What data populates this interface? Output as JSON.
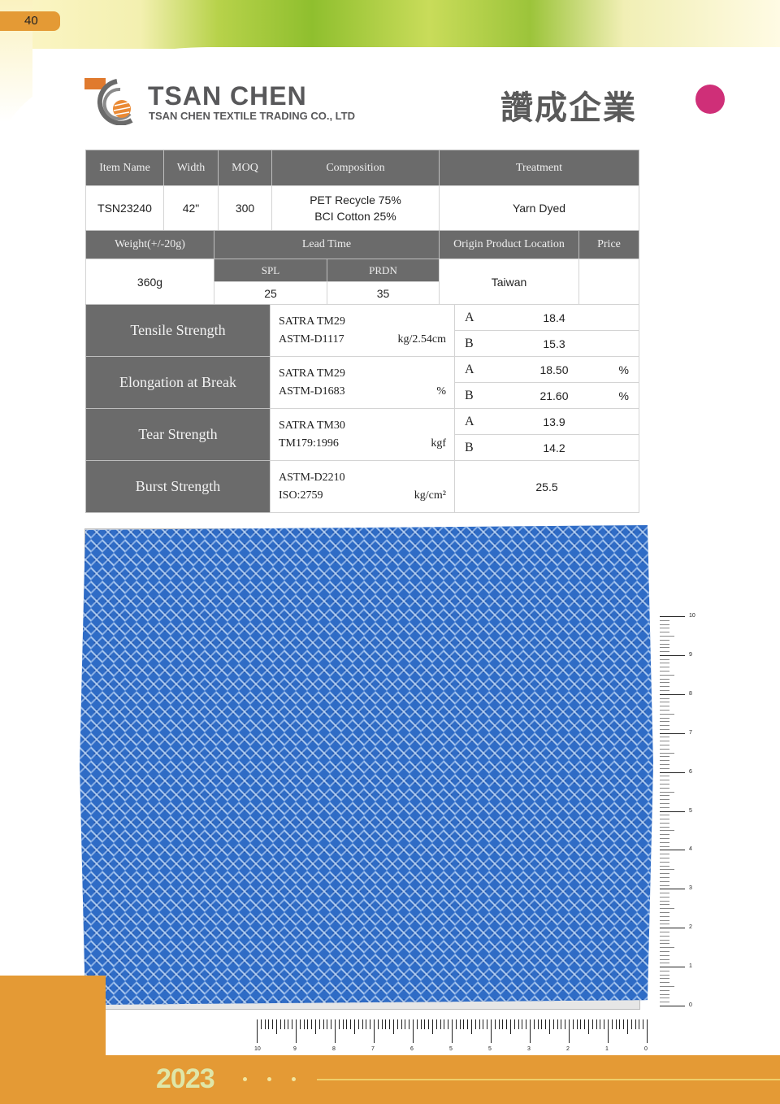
{
  "page_number": "40",
  "brand": {
    "name": "TSAN CHEN",
    "subtitle": "TSAN CHEN TEXTILE TRADING CO., LTD",
    "chinese_name": "讚成企業",
    "accent_color": "#cf2f78",
    "orange": "#e49a35"
  },
  "spec": {
    "headers1": [
      "Item Name",
      "Width",
      "MOQ",
      "Composition",
      "Treatment"
    ],
    "item_name": "TSN23240",
    "width": "42\"",
    "moq": "300",
    "composition": [
      "PET Recycle 75%",
      "BCI Cotton 25%"
    ],
    "treatment": "Yarn Dyed",
    "headers2": [
      "Weight(+/-20g)",
      "Lead Time",
      "Origin Product Location",
      "Price"
    ],
    "lead_sub": [
      "SPL",
      "PRDN"
    ],
    "weight": "360g",
    "spl": "25",
    "prdn": "35",
    "origin": "Taiwan",
    "price": ""
  },
  "tests": [
    {
      "name": "Tensile Strength",
      "methods": [
        "SATRA TM29",
        "ASTM-D1117"
      ],
      "unit": "kg/2.54cm",
      "results": [
        {
          "dir": "A",
          "value": "18.4",
          "unit": ""
        },
        {
          "dir": "B",
          "value": "15.3",
          "unit": ""
        }
      ]
    },
    {
      "name": "Elongation at Break",
      "methods": [
        "SATRA TM29",
        "ASTM-D1683"
      ],
      "unit": "%",
      "results": [
        {
          "dir": "A",
          "value": "18.50",
          "unit": "%"
        },
        {
          "dir": "B",
          "value": "21.60",
          "unit": "%"
        }
      ]
    },
    {
      "name": "Tear Strength",
      "methods": [
        "SATRA TM30",
        "TM179:1996"
      ],
      "unit": "kgf",
      "results": [
        {
          "dir": "A",
          "value": "13.9",
          "unit": ""
        },
        {
          "dir": "B",
          "value": "14.2",
          "unit": ""
        }
      ]
    },
    {
      "name": "Burst Strength",
      "methods": [
        "ASTM-D2210",
        "ISO:2759"
      ],
      "unit": "kg/cm²",
      "value": "25.5"
    }
  ],
  "ruler": {
    "horizontal_labels": [
      "10",
      "9",
      "8",
      "7",
      "6",
      "5",
      "5",
      "3",
      "2",
      "1",
      "0"
    ],
    "vertical_labels": [
      "10",
      "9",
      "8",
      "7",
      "6",
      "5",
      "4",
      "3",
      "2",
      "1",
      "0"
    ]
  },
  "footer": {
    "year": "2023"
  }
}
